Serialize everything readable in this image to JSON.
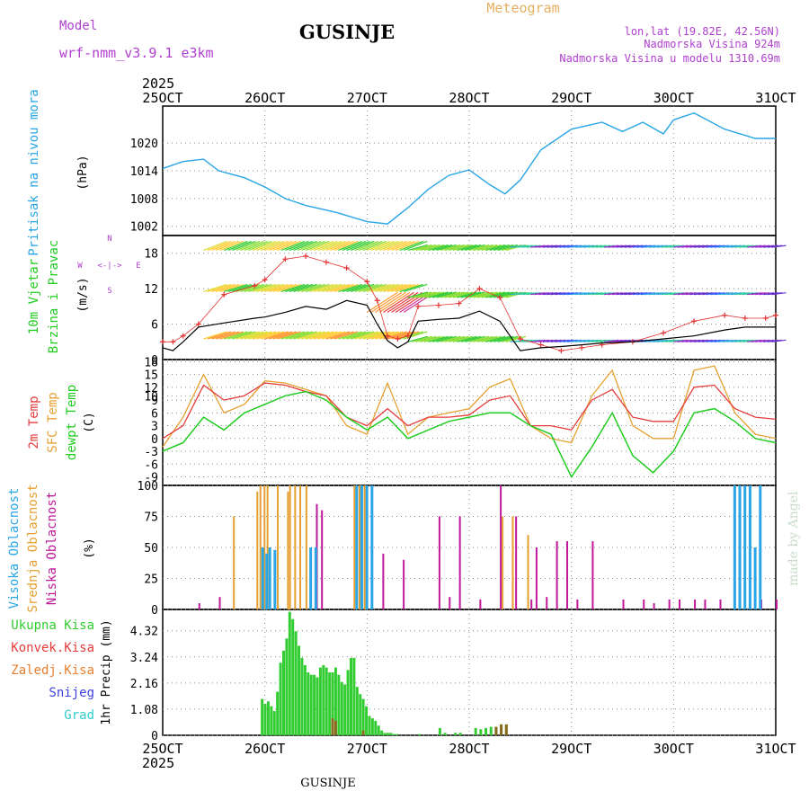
{
  "header": {
    "model_label": "Model",
    "model_name": "wrf-nmm_v3.9.1 e3km",
    "title": "GUSINJE",
    "subtitle": "Meteogram",
    "lonlat": "lon,lat (19.82E, 42.56N)",
    "elevation": "Nadmorska Visina 924m",
    "model_elevation": "Nadmorska Visina u modelu 1310.69m",
    "year_top": "2025",
    "year_bottom": "2025",
    "footer_title": "GUSINJE",
    "watermark": "made by Angel"
  },
  "colors": {
    "pressure": "#2aa6e6",
    "wind_speed": "#000000",
    "gust": "#e63232",
    "temp2m": "#e63c3c",
    "sfc_temp": "#e6a030",
    "dewpt": "#22cc22",
    "cloud_high": "#2aa6e6",
    "cloud_mid": "#e6a030",
    "cloud_low": "#c0189a",
    "precip_total": "#33cc33",
    "precip_conv": "#e63c3c",
    "precip_frozen": "#e67f30",
    "snow": "#4040e0",
    "graupel": "#33cccc",
    "magenta_text": "#b040d0"
  },
  "chart_data": [
    {
      "type": "line",
      "panel": "pressure",
      "ylabel": "Pritisak na nivou mora",
      "unit": "(hPa)",
      "ylim": [
        1000,
        1028
      ],
      "yticks": [
        1002,
        1008,
        1014,
        1020
      ],
      "x_categories": [
        "25OCT",
        "26OCT",
        "27OCT",
        "28OCT",
        "29OCT",
        "30OCT",
        "31OCT"
      ],
      "x_days": [
        0,
        0.2,
        0.4,
        0.55,
        0.8,
        1.0,
        1.2,
        1.4,
        1.7,
        2.0,
        2.2,
        2.4,
        2.6,
        2.8,
        3.0,
        3.2,
        3.35,
        3.5,
        3.7,
        4.0,
        4.3,
        4.5,
        4.7,
        4.9,
        5.0,
        5.2,
        5.5,
        5.8,
        6.0
      ],
      "values": [
        1014.5,
        1016,
        1016.5,
        1014,
        1012.5,
        1010.5,
        1008,
        1006.5,
        1005,
        1003,
        1002.5,
        1006,
        1010,
        1013,
        1014.2,
        1011,
        1009,
        1012,
        1018.5,
        1023,
        1024.5,
        1022.5,
        1024.5,
        1022,
        1025,
        1026.5,
        1023,
        1021,
        1021
      ]
    },
    {
      "type": "line",
      "panel": "wind",
      "ylabel": "10m Vjetar",
      "ylabel2": "Brzina i Pravac",
      "unit": "(m/s)",
      "direction_legend": [
        "N",
        "E",
        "S",
        "W"
      ],
      "ylim": [
        0,
        21
      ],
      "yticks": [
        0,
        6,
        12,
        18
      ],
      "x_days": [
        0,
        0.1,
        0.2,
        0.35,
        0.6,
        0.9,
        1.0,
        1.2,
        1.4,
        1.6,
        1.8,
        2.0,
        2.1,
        2.2,
        2.3,
        2.4,
        2.5,
        2.7,
        2.9,
        3.1,
        3.3,
        3.5,
        3.7,
        3.9,
        4.1,
        4.3,
        4.6,
        4.9,
        5.2,
        5.5,
        5.7,
        5.9,
        6.0
      ],
      "wind_speed": [
        2,
        1.5,
        3,
        5.5,
        6.2,
        7,
        7.2,
        8,
        9,
        8.5,
        10,
        9.2,
        6,
        3.2,
        2,
        3,
        6.5,
        6.8,
        7,
        8.2,
        6.5,
        1.5,
        2,
        2.2,
        2.5,
        2.8,
        3,
        3.5,
        4,
        5,
        5.5,
        5.5,
        5.5
      ],
      "gust": [
        3,
        3,
        4,
        6,
        11,
        12.5,
        13.5,
        17,
        17.5,
        16.5,
        15.5,
        13.2,
        10,
        4,
        3.5,
        4,
        9,
        9.2,
        9.5,
        12,
        10.5,
        3.5,
        2.5,
        1.5,
        2,
        2.5,
        3,
        4.5,
        6.5,
        7.5,
        7,
        7,
        7.5
      ]
    },
    {
      "type": "line",
      "panel": "temperature",
      "ylabel1": "2m Temp",
      "ylabel2": "SFC Temp",
      "ylabel3": "dewpt Temp",
      "unit": "(C)",
      "ylim": [
        -11,
        18.5
      ],
      "yticks": [
        -9,
        -6,
        -3,
        0,
        3,
        6,
        9,
        10,
        12,
        15,
        18
      ],
      "x_days": [
        0,
        0.2,
        0.4,
        0.6,
        0.8,
        1.0,
        1.2,
        1.4,
        1.6,
        1.8,
        2.0,
        2.2,
        2.4,
        2.6,
        2.8,
        3.0,
        3.2,
        3.4,
        3.6,
        3.8,
        4.0,
        4.2,
        4.4,
        4.6,
        4.8,
        5.0,
        5.2,
        5.4,
        5.6,
        5.8,
        6.0
      ],
      "temp2m": [
        0,
        3,
        12.5,
        9,
        10,
        13,
        12.5,
        11,
        10,
        5,
        3,
        7,
        3,
        5,
        5,
        5.5,
        9,
        10,
        3,
        3,
        2,
        9,
        11.5,
        5,
        4,
        4,
        12,
        12.5,
        7,
        5,
        4.5
      ],
      "sfc_temp": [
        -2,
        5,
        15,
        6,
        8,
        13.5,
        13,
        11.5,
        10,
        3,
        1,
        13,
        1,
        5,
        6,
        7,
        12,
        14,
        3,
        0,
        -1,
        10,
        16,
        3,
        0,
        0,
        16,
        17,
        6,
        1,
        0
      ],
      "dewpt": [
        -3,
        -1,
        5,
        2,
        6,
        8,
        10,
        11,
        9,
        5,
        2,
        5,
        0,
        2,
        4,
        5,
        6,
        6,
        3,
        1,
        -9,
        -2,
        6,
        -4,
        -8,
        -3,
        6,
        7,
        4,
        0,
        -1
      ]
    },
    {
      "type": "bar",
      "panel": "clouds",
      "ylabel1": "Visoka Oblacnost",
      "ylabel2": "Srednja Oblacnost",
      "ylabel3": "Niska Oblacnost",
      "unit": "(%)",
      "ylim": [
        0,
        100
      ],
      "yticks": [
        0,
        25,
        50,
        75,
        100
      ],
      "mid_cloud": [
        [
          0.67,
          75
        ],
        [
          0.93,
          100
        ],
        [
          0.97,
          100
        ],
        [
          1.0,
          100
        ],
        [
          1.2,
          95
        ],
        [
          1.22,
          100
        ],
        [
          1.27,
          100
        ],
        [
          1.32,
          100
        ],
        [
          1.38,
          100
        ],
        [
          1.85,
          100
        ],
        [
          1.9,
          100
        ],
        [
          1.95,
          100
        ],
        [
          2.02,
          100
        ],
        [
          3.3,
          75
        ],
        [
          3.4,
          75
        ],
        [
          3.55,
          60
        ],
        [
          0.9,
          95
        ],
        [
          1.1,
          100
        ]
      ],
      "high_cloud": [
        [
          0.93,
          50
        ],
        [
          0.97,
          45
        ],
        [
          1.0,
          50
        ],
        [
          1.05,
          48
        ],
        [
          1.4,
          50
        ],
        [
          1.45,
          50
        ],
        [
          1.85,
          100
        ],
        [
          1.9,
          100
        ],
        [
          1.95,
          100
        ],
        [
          2.0,
          100
        ],
        [
          5.55,
          100
        ],
        [
          5.6,
          100
        ],
        [
          5.65,
          100
        ],
        [
          5.7,
          100
        ],
        [
          5.75,
          50
        ],
        [
          5.8,
          100
        ]
      ],
      "low_cloud": [
        [
          0.35,
          5
        ],
        [
          0.55,
          10
        ],
        [
          1.5,
          85
        ],
        [
          1.55,
          80
        ],
        [
          2.15,
          45
        ],
        [
          2.35,
          40
        ],
        [
          2.7,
          75
        ],
        [
          2.8,
          10
        ],
        [
          2.9,
          75
        ],
        [
          3.1,
          8
        ],
        [
          3.3,
          100
        ],
        [
          3.45,
          75
        ],
        [
          3.6,
          8
        ],
        [
          3.65,
          50
        ],
        [
          3.75,
          10
        ],
        [
          3.85,
          55
        ],
        [
          3.95,
          55
        ],
        [
          4.2,
          55
        ],
        [
          4.05,
          8
        ],
        [
          4.5,
          8
        ],
        [
          4.7,
          8
        ],
        [
          4.8,
          5
        ],
        [
          4.95,
          8
        ],
        [
          5.05,
          8
        ],
        [
          5.2,
          8
        ],
        [
          5.3,
          8
        ],
        [
          5.45,
          8
        ],
        [
          5.85,
          8
        ],
        [
          6.0,
          8
        ]
      ]
    },
    {
      "type": "bar",
      "panel": "precip",
      "legend": [
        "Ukupna Kisa",
        "Konvek.Kisa",
        "Zaledj.Kisa",
        "Snijeg",
        "Grad"
      ],
      "ylabel": "1hr Precip (mm)",
      "ylim": [
        0,
        5.2
      ],
      "yticks": [
        0,
        1.08,
        2.16,
        3.24,
        4.32
      ],
      "x_categories": [
        "25OCT",
        "26OCT",
        "27OCT",
        "28OCT",
        "29OCT",
        "30OCT",
        "31OCT"
      ],
      "x_days": [
        0.96,
        0.99,
        1.02,
        1.05,
        1.08,
        1.11,
        1.14,
        1.17,
        1.2,
        1.23,
        1.26,
        1.29,
        1.32,
        1.35,
        1.38,
        1.41,
        1.44,
        1.47,
        1.5,
        1.53,
        1.56,
        1.59,
        1.62,
        1.65,
        1.68,
        1.71,
        1.74,
        1.77,
        1.8,
        1.83,
        1.86,
        1.89,
        1.92,
        1.95,
        1.98,
        2.01,
        2.04,
        2.07,
        2.1,
        2.13,
        2.16,
        2.19,
        2.22,
        2.25,
        2.28,
        2.5,
        2.7,
        2.75,
        2.85,
        2.9,
        3.05,
        3.1,
        3.15,
        3.2,
        3.25,
        3.3,
        3.35
      ],
      "values": [
        1.5,
        1.3,
        1.4,
        1.2,
        1.0,
        1.8,
        3.0,
        3.5,
        4.0,
        5.1,
        4.8,
        4.3,
        3.7,
        3.2,
        2.9,
        2.6,
        2.5,
        2.5,
        2.4,
        2.8,
        2.9,
        2.8,
        2.6,
        2.6,
        2.8,
        2.5,
        2.2,
        2.1,
        2.7,
        3.2,
        3.2,
        2.0,
        1.7,
        1.5,
        1.2,
        0.8,
        0.7,
        0.6,
        0.4,
        0.2,
        0.1,
        0.1,
        0.1,
        0.05,
        0.05,
        0.05,
        0.3,
        0.1,
        0.1,
        0.1,
        0.3,
        0.25,
        0.3,
        0.35,
        0.35,
        0.45,
        0.45
      ],
      "convective": [
        [
          1.65,
          0.7
        ],
        [
          1.68,
          0.6
        ],
        [
          1.95,
          0.2
        ],
        [
          3.25,
          0.35
        ],
        [
          3.3,
          0.45
        ],
        [
          3.35,
          0.45
        ]
      ]
    }
  ]
}
